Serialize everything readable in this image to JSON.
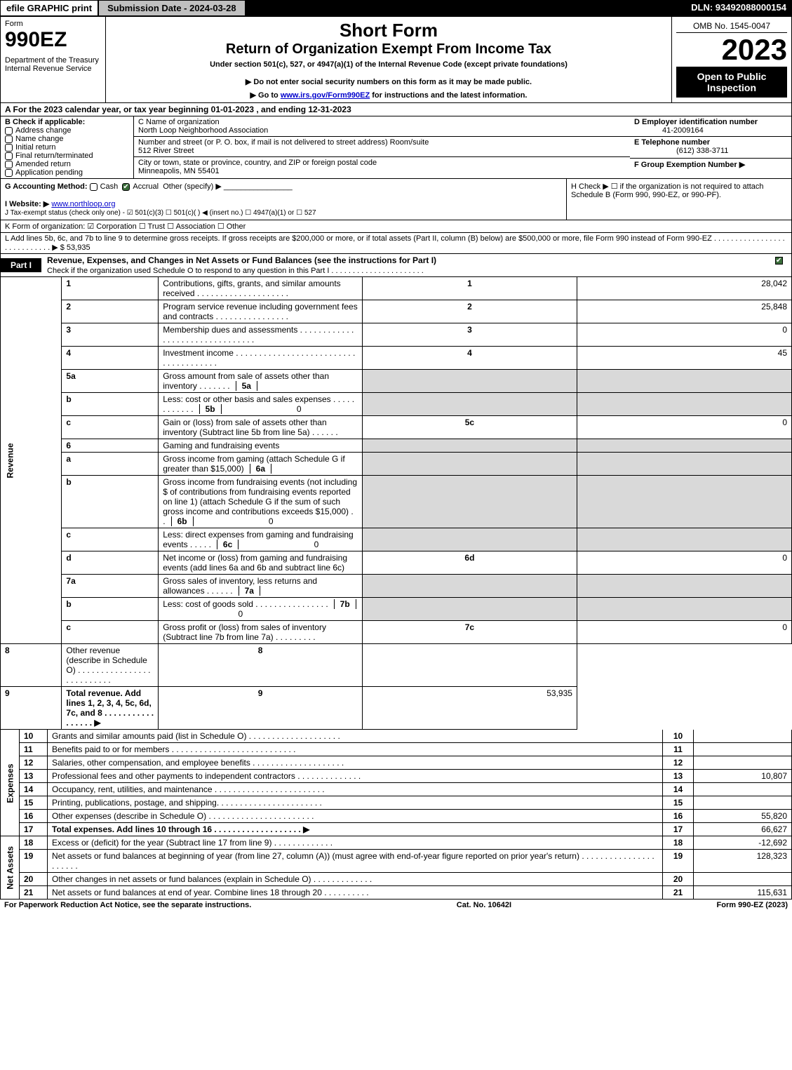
{
  "topbar": {
    "efile": "efile GRAPHIC print",
    "submission": "Submission Date - 2024-03-28",
    "dln": "DLN: 93492088000154"
  },
  "header": {
    "form_word": "Form",
    "form_no": "990EZ",
    "dept": "Department of the Treasury\nInternal Revenue Service",
    "short": "Short Form",
    "title": "Return of Organization Exempt From Income Tax",
    "under": "Under section 501(c), 527, or 4947(a)(1) of the Internal Revenue Code (except private foundations)",
    "ssn": "▶ Do not enter social security numbers on this form as it may be made public.",
    "goto_pre": "▶ Go to ",
    "goto_link": "www.irs.gov/Form990EZ",
    "goto_post": " for instructions and the latest information.",
    "omb": "OMB No. 1545-0047",
    "year": "2023",
    "open": "Open to Public Inspection"
  },
  "lineA": "A  For the 2023 calendar year, or tax year beginning 01-01-2023 , and ending 12-31-2023",
  "B": {
    "label": "B  Check if applicable:",
    "opts": [
      "Address change",
      "Name change",
      "Initial return",
      "Final return/terminated",
      "Amended return",
      "Application pending"
    ],
    "C_name_lbl": "C Name of organization",
    "C_name": "North Loop Neighborhood Association",
    "C_addr_lbl": "Number and street (or P. O. box, if mail is not delivered to street address)      Room/suite",
    "C_addr": "512 River Street",
    "C_city_lbl": "City or town, state or province, country, and ZIP or foreign postal code",
    "C_city": "Minneapolis, MN  55401",
    "D_lbl": "D Employer identification number",
    "D_val": "41-2009164",
    "E_lbl": "E Telephone number",
    "E_val": "(612) 338-3711",
    "F_lbl": "F Group Exemption Number   ▶"
  },
  "G": {
    "label": "G Accounting Method:   ",
    "cash": "Cash",
    "accrual": "Accrual",
    "other": "Other (specify) ▶"
  },
  "H": "H   Check ▶  ☐  if the organization is not required to attach Schedule B (Form 990, 990-EZ, or 990-PF).",
  "I_lbl": "I Website: ▶",
  "I_val": "www.northloop.org",
  "J": "J Tax-exempt status (check only one) -  ☑ 501(c)(3)  ☐ 501(c)(  ) ◀ (insert no.)  ☐ 4947(a)(1) or  ☐ 527",
  "K": "K Form of organization:   ☑ Corporation   ☐ Trust   ☐ Association   ☐ Other",
  "L": "L Add lines 5b, 6c, and 7b to line 9 to determine gross receipts. If gross receipts are $200,000 or more, or if total assets (Part II, column (B) below) are $500,000 or more, file Form 990 instead of Form 990-EZ  .  .  .  .  .  .  .  .  .  .  .  .  .  .  .  .  .  .  .  .  .  .  .  .  .  .  .  .  ▶ $ 53,935",
  "partI": {
    "tab": "Part I",
    "title": "Revenue, Expenses, and Changes in Net Assets or Fund Balances (see the instructions for Part I)",
    "sub": "Check if the organization used Schedule O to respond to any question in this Part I .  .  .  .  .  .  .  .  .  .  .  .  .  .  .  .  .  .  .  .  .  .",
    "sub_checked": true
  },
  "sections": {
    "revenue_label": "Revenue",
    "expenses_label": "Expenses",
    "net_label": "Net Assets"
  },
  "rows": [
    {
      "n": "1",
      "d": "Contributions, gifts, grants, and similar amounts received  .  .  .  .  .  .  .  .  .  .  .  .  .  .  .  .  .  .  .  .",
      "b": "1",
      "v": "28,042"
    },
    {
      "n": "2",
      "d": "Program service revenue including government fees and contracts  .  .  .  .  .  .  .  .  .  .  .  .  .  .  .  .",
      "b": "2",
      "v": "25,848"
    },
    {
      "n": "3",
      "d": "Membership dues and assessments  .  .  .  .  .  .  .  .  .  .  .  .  .  .  .  .  .  .  .  .  .  .  .  .  .  .  .  .  .  .  .  .",
      "b": "3",
      "v": "0"
    },
    {
      "n": "4",
      "d": "Investment income  .  .  .  .  .  .  .  .  .  .  .  .  .  .  .  .  .  .  .  .  .  .  .  .  .  .  .  .  .  .  .  .  .  .  .  .  .  .",
      "b": "4",
      "v": "45"
    },
    {
      "n": "5a",
      "d": "Gross amount from sale of assets other than inventory  .  .  .  .  .  .  .",
      "ib": "5a",
      "iv": "",
      "grey": true
    },
    {
      "n": "b",
      "d": "Less: cost or other basis and sales expenses  .  .  .  .  .  .  .  .  .  .  .  .",
      "ib": "5b",
      "iv": "0",
      "grey": true
    },
    {
      "n": "c",
      "d": "Gain or (loss) from sale of assets other than inventory (Subtract line 5b from line 5a)  .  .  .  .  .  .",
      "b": "5c",
      "v": "0"
    },
    {
      "n": "6",
      "d": "Gaming and fundraising events",
      "grey": true
    },
    {
      "n": "a",
      "d": "Gross income from gaming (attach Schedule G if greater than $15,000)",
      "ib": "6a",
      "iv": "",
      "grey": true
    },
    {
      "n": "b",
      "d": "Gross income from fundraising events (not including $                       of contributions from fundraising events reported on line 1) (attach Schedule G if the sum of such gross income and contributions exceeds $15,000)    .  .",
      "ib": "6b",
      "iv": "0",
      "grey": true
    },
    {
      "n": "c",
      "d": "Less: direct expenses from gaming and fundraising events  .  .  .  .  .",
      "ib": "6c",
      "iv": "0",
      "grey": true
    },
    {
      "n": "d",
      "d": "Net income or (loss) from gaming and fundraising events (add lines 6a and 6b and subtract line 6c)",
      "b": "6d",
      "v": "0"
    },
    {
      "n": "7a",
      "d": "Gross sales of inventory, less returns and allowances  .  .  .  .  .  .",
      "ib": "7a",
      "iv": "",
      "grey": true
    },
    {
      "n": "b",
      "d": "Less: cost of goods sold        .  .  .  .  .  .  .  .  .  .  .  .  .  .  .  .",
      "ib": "7b",
      "iv": "0",
      "grey": true
    },
    {
      "n": "c",
      "d": "Gross profit or (loss) from sales of inventory (Subtract line 7b from line 7a)  .  .  .  .  .  .  .  .  .",
      "b": "7c",
      "v": "0"
    },
    {
      "n": "8",
      "d": "Other revenue (describe in Schedule O)  .  .  .  .  .  .  .  .  .  .  .  .  .  .  .  .  .  .  .  .  .  .  .  .  .  .",
      "b": "8",
      "v": ""
    },
    {
      "n": "9",
      "d": "Total revenue. Add lines 1, 2, 3, 4, 5c, 6d, 7c, and 8   .  .  .  .  .  .  .  .  .  .  .  .  .  .  .  .  .  ▶",
      "b": "9",
      "v": "53,935",
      "bold": true
    }
  ],
  "exp_rows": [
    {
      "n": "10",
      "d": "Grants and similar amounts paid (list in Schedule O)  .  .  .  .  .  .  .  .  .  .  .  .  .  .  .  .  .  .  .  .",
      "b": "10",
      "v": ""
    },
    {
      "n": "11",
      "d": "Benefits paid to or for members      .  .  .  .  .  .  .  .  .  .  .  .  .  .  .  .  .  .  .  .  .  .  .  .  .  .  .",
      "b": "11",
      "v": ""
    },
    {
      "n": "12",
      "d": "Salaries, other compensation, and employee benefits  .  .  .  .  .  .  .  .  .  .  .  .  .  .  .  .  .  .  .  .",
      "b": "12",
      "v": ""
    },
    {
      "n": "13",
      "d": "Professional fees and other payments to independent contractors  .  .  .  .  .  .  .  .  .  .  .  .  .  .",
      "b": "13",
      "v": "10,807"
    },
    {
      "n": "14",
      "d": "Occupancy, rent, utilities, and maintenance  .  .  .  .  .  .  .  .  .  .  .  .  .  .  .  .  .  .  .  .  .  .  .  .",
      "b": "14",
      "v": ""
    },
    {
      "n": "15",
      "d": "Printing, publications, postage, and shipping.   .  .  .  .  .  .  .  .  .  .  .  .  .  .  .  .  .  .  .  .  .  .",
      "b": "15",
      "v": ""
    },
    {
      "n": "16",
      "d": "Other expenses (describe in Schedule O)     .  .  .  .  .  .  .  .  .  .  .  .  .  .  .  .  .  .  .  .  .  .  .",
      "b": "16",
      "v": "55,820"
    },
    {
      "n": "17",
      "d": "Total expenses. Add lines 10 through 16      .  .  .  .  .  .  .  .  .  .  .  .  .  .  .  .  .  .  .  ▶",
      "b": "17",
      "v": "66,627",
      "bold": true
    }
  ],
  "net_rows": [
    {
      "n": "18",
      "d": "Excess or (deficit) for the year (Subtract line 17 from line 9)       .  .  .  .  .  .  .  .  .  .  .  .  .",
      "b": "18",
      "v": "-12,692"
    },
    {
      "n": "19",
      "d": "Net assets or fund balances at beginning of year (from line 27, column (A)) (must agree with end-of-year figure reported on prior year's return)  .  .  .  .  .  .  .  .  .  .  .  .  .  .  .  .  .  .  .  .  .  .",
      "b": "19",
      "v": "128,323"
    },
    {
      "n": "20",
      "d": "Other changes in net assets or fund balances (explain in Schedule O)  .  .  .  .  .  .  .  .  .  .  .  .  .",
      "b": "20",
      "v": ""
    },
    {
      "n": "21",
      "d": "Net assets or fund balances at end of year. Combine lines 18 through 20  .  .  .  .  .  .  .  .  .  .",
      "b": "21",
      "v": "115,631"
    }
  ],
  "footer": {
    "left": "For Paperwork Reduction Act Notice, see the separate instructions.",
    "mid": "Cat. No. 10642I",
    "right": "Form 990-EZ (2023)"
  }
}
